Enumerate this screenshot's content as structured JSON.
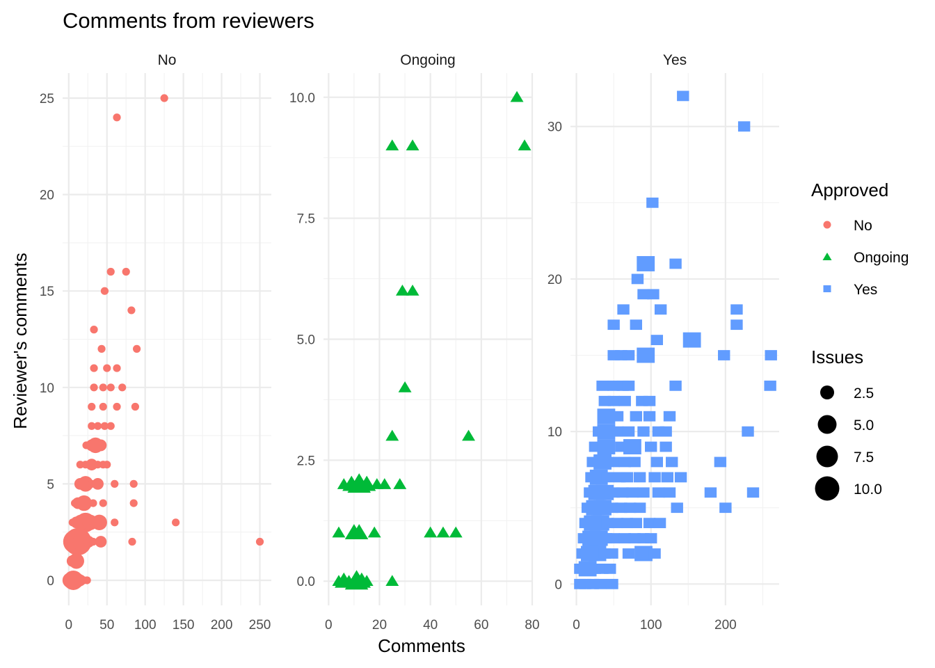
{
  "chart_data": {
    "type": "scatter",
    "title": "Comments from reviewers",
    "xlabel": "Comments",
    "ylabel": "Reviewer's comments",
    "facet_by": "Approved",
    "colors": {
      "No": "#F8766D",
      "Ongoing": "#00BA38",
      "Yes": "#619CFF"
    },
    "shapes": {
      "No": "circle",
      "Ongoing": "triangle",
      "Yes": "square"
    },
    "grid": true,
    "legend_position": "right",
    "legend": {
      "color_title": "Approved",
      "color_entries": [
        "No",
        "Ongoing",
        "Yes"
      ],
      "size_title": "Issues",
      "size_entries": [
        "2.5",
        "5.0",
        "7.5",
        "10.0"
      ],
      "size_values": [
        2.5,
        5.0,
        7.5,
        10.0
      ]
    },
    "panels": [
      {
        "label": "No",
        "xlim": [
          -8,
          265
        ],
        "ylim": [
          -1.3,
          26.3
        ],
        "xticks": [
          0,
          50,
          100,
          150,
          200,
          250
        ],
        "xtick_labels": [
          "0",
          "50",
          "100",
          "150",
          "200",
          "250"
        ],
        "yticks": [
          0,
          5,
          10,
          15,
          20,
          25
        ],
        "ytick_labels": [
          "0",
          "5",
          "10",
          "15",
          "20",
          "25"
        ],
        "points": [
          [
            125,
            25,
            1
          ],
          [
            63,
            24,
            1
          ],
          [
            55,
            16,
            1
          ],
          [
            75,
            16,
            1
          ],
          [
            47,
            15,
            1
          ],
          [
            82,
            14,
            1
          ],
          [
            33,
            13,
            1
          ],
          [
            43,
            12,
            1
          ],
          [
            89,
            12,
            1
          ],
          [
            33,
            11,
            1
          ],
          [
            50,
            11,
            1
          ],
          [
            63,
            11,
            1
          ],
          [
            33,
            10,
            1
          ],
          [
            45,
            10,
            1
          ],
          [
            55,
            10,
            1
          ],
          [
            70,
            10,
            1
          ],
          [
            30,
            9,
            1
          ],
          [
            45,
            9,
            1
          ],
          [
            63,
            9,
            1
          ],
          [
            87,
            9,
            1
          ],
          [
            30,
            8,
            1
          ],
          [
            38,
            8,
            1
          ],
          [
            47,
            8,
            1
          ],
          [
            55,
            8,
            1
          ],
          [
            23,
            7,
            1
          ],
          [
            30,
            7,
            2
          ],
          [
            35,
            7,
            3
          ],
          [
            42,
            7,
            2
          ],
          [
            15,
            6,
            1
          ],
          [
            22,
            6,
            1
          ],
          [
            30,
            6,
            2
          ],
          [
            38,
            6,
            1
          ],
          [
            45,
            6,
            1
          ],
          [
            50,
            6,
            1
          ],
          [
            15,
            5,
            2
          ],
          [
            22,
            5,
            3
          ],
          [
            30,
            5,
            1
          ],
          [
            38,
            5,
            2
          ],
          [
            60,
            5,
            1
          ],
          [
            85,
            5,
            1
          ],
          [
            8,
            4,
            1
          ],
          [
            12,
            4,
            2
          ],
          [
            20,
            4,
            3
          ],
          [
            32,
            4,
            1
          ],
          [
            45,
            4,
            1
          ],
          [
            85,
            4,
            1
          ],
          [
            5,
            3,
            1
          ],
          [
            10,
            3,
            2
          ],
          [
            16,
            3,
            3
          ],
          [
            22,
            3,
            4
          ],
          [
            28,
            3,
            3
          ],
          [
            34,
            3,
            2
          ],
          [
            40,
            3,
            3
          ],
          [
            60,
            3,
            1
          ],
          [
            140,
            3,
            1
          ],
          [
            5,
            2,
            3
          ],
          [
            8,
            2,
            5
          ],
          [
            12,
            2,
            6
          ],
          [
            18,
            2,
            4
          ],
          [
            26,
            2,
            2
          ],
          [
            32,
            2,
            1
          ],
          [
            42,
            2,
            2
          ],
          [
            83,
            2,
            1
          ],
          [
            250,
            2,
            1
          ],
          [
            5,
            1,
            2
          ],
          [
            10,
            1,
            3
          ],
          [
            2,
            0,
            3
          ],
          [
            6,
            0,
            4
          ],
          [
            10,
            0,
            3
          ],
          [
            15,
            0,
            2
          ],
          [
            20,
            0,
            1
          ],
          [
            24,
            0,
            1
          ]
        ]
      },
      {
        "label": "Ongoing",
        "xlim": [
          -2,
          80
        ],
        "ylim": [
          -0.5,
          10.5
        ],
        "xticks": [
          0,
          20,
          40,
          60,
          80
        ],
        "xtick_labels": [
          "0",
          "20",
          "40",
          "60",
          "80"
        ],
        "yticks": [
          0,
          2.5,
          5,
          7.5,
          10
        ],
        "ytick_labels": [
          "0.0",
          "2.5",
          "5.0",
          "7.5",
          "10.0"
        ],
        "points": [
          [
            74,
            10,
            1
          ],
          [
            77,
            9,
            1
          ],
          [
            25,
            9,
            1
          ],
          [
            33,
            9,
            1
          ],
          [
            29,
            6,
            1
          ],
          [
            33,
            6,
            1
          ],
          [
            30,
            4,
            1
          ],
          [
            25,
            3,
            1
          ],
          [
            55,
            3,
            1
          ],
          [
            6,
            2,
            1
          ],
          [
            9,
            2,
            2
          ],
          [
            12,
            2,
            3
          ],
          [
            15,
            2,
            2
          ],
          [
            19,
            2,
            1
          ],
          [
            22,
            2,
            1
          ],
          [
            28,
            2,
            1
          ],
          [
            4,
            1,
            1
          ],
          [
            10,
            1,
            2
          ],
          [
            12,
            1,
            2
          ],
          [
            18,
            1,
            1
          ],
          [
            40,
            1,
            1
          ],
          [
            45,
            1,
            1
          ],
          [
            50,
            1,
            1
          ],
          [
            4,
            0,
            1
          ],
          [
            6,
            0,
            2
          ],
          [
            8,
            0,
            1
          ],
          [
            11,
            0,
            3
          ],
          [
            13,
            0,
            2
          ],
          [
            15,
            0,
            1
          ],
          [
            25,
            0,
            1
          ]
        ]
      },
      {
        "label": "Yes",
        "xlim": [
          -8,
          272
        ],
        "ylim": [
          -1.4,
          33.5
        ],
        "xticks": [
          0,
          100,
          200
        ],
        "xtick_labels": [
          "0",
          "100",
          "200"
        ],
        "yticks": [
          0,
          10,
          20,
          30
        ],
        "ytick_labels": [
          "0",
          "10",
          "20",
          "30"
        ],
        "points": [
          [
            143,
            32,
            1
          ],
          [
            225,
            30,
            1
          ],
          [
            102,
            25,
            1
          ],
          [
            93,
            21,
            2
          ],
          [
            133,
            21,
            1
          ],
          [
            82,
            20,
            1
          ],
          [
            90,
            19,
            1
          ],
          [
            103,
            19,
            1
          ],
          [
            63,
            18,
            1
          ],
          [
            113,
            18,
            1
          ],
          [
            215,
            18,
            1
          ],
          [
            50,
            17,
            1
          ],
          [
            80,
            17,
            1
          ],
          [
            215,
            17,
            1
          ],
          [
            108,
            16,
            1
          ],
          [
            155,
            16,
            2
          ],
          [
            50,
            15,
            1
          ],
          [
            60,
            15,
            1
          ],
          [
            70,
            15,
            1
          ],
          [
            93,
            15,
            2
          ],
          [
            198,
            15,
            1
          ],
          [
            261,
            15,
            1
          ],
          [
            35,
            13,
            1
          ],
          [
            50,
            13,
            1
          ],
          [
            62,
            13,
            1
          ],
          [
            70,
            13,
            1
          ],
          [
            133,
            13,
            1
          ],
          [
            260,
            13,
            1
          ],
          [
            38,
            12,
            1
          ],
          [
            50,
            12,
            1
          ],
          [
            65,
            12,
            1
          ],
          [
            88,
            12,
            1
          ],
          [
            98,
            12,
            1
          ],
          [
            40,
            11,
            2
          ],
          [
            55,
            11,
            1
          ],
          [
            80,
            11,
            1
          ],
          [
            98,
            11,
            1
          ],
          [
            125,
            11,
            1
          ],
          [
            30,
            10,
            1
          ],
          [
            40,
            10,
            2
          ],
          [
            55,
            10,
            1
          ],
          [
            70,
            10,
            1
          ],
          [
            90,
            10,
            1
          ],
          [
            110,
            10,
            1
          ],
          [
            120,
            10,
            1
          ],
          [
            230,
            10,
            1
          ],
          [
            25,
            9,
            1
          ],
          [
            40,
            9,
            2
          ],
          [
            60,
            9,
            1
          ],
          [
            75,
            9,
            2
          ],
          [
            100,
            9,
            1
          ],
          [
            120,
            9,
            1
          ],
          [
            22,
            8,
            1
          ],
          [
            35,
            8,
            2
          ],
          [
            50,
            8,
            1
          ],
          [
            65,
            8,
            1
          ],
          [
            78,
            8,
            1
          ],
          [
            108,
            8,
            1
          ],
          [
            128,
            8,
            1
          ],
          [
            193,
            8,
            1
          ],
          [
            20,
            7,
            1
          ],
          [
            30,
            7,
            2
          ],
          [
            42,
            7,
            1
          ],
          [
            58,
            7,
            1
          ],
          [
            68,
            7,
            1
          ],
          [
            85,
            7,
            1
          ],
          [
            105,
            7,
            1
          ],
          [
            122,
            7,
            1
          ],
          [
            140,
            7,
            1
          ],
          [
            18,
            6,
            1
          ],
          [
            28,
            6,
            2
          ],
          [
            38,
            6,
            2
          ],
          [
            50,
            6,
            1
          ],
          [
            62,
            6,
            1
          ],
          [
            75,
            6,
            1
          ],
          [
            90,
            6,
            1
          ],
          [
            110,
            6,
            1
          ],
          [
            125,
            6,
            1
          ],
          [
            180,
            6,
            1
          ],
          [
            237,
            6,
            1
          ],
          [
            15,
            5,
            1
          ],
          [
            25,
            5,
            2
          ],
          [
            35,
            5,
            2
          ],
          [
            48,
            5,
            1
          ],
          [
            60,
            5,
            1
          ],
          [
            72,
            5,
            1
          ],
          [
            85,
            5,
            1
          ],
          [
            135,
            5,
            1
          ],
          [
            200,
            5,
            1
          ],
          [
            12,
            4,
            1
          ],
          [
            22,
            4,
            2
          ],
          [
            32,
            4,
            2
          ],
          [
            42,
            4,
            1
          ],
          [
            55,
            4,
            1
          ],
          [
            68,
            4,
            1
          ],
          [
            80,
            4,
            1
          ],
          [
            98,
            4,
            1
          ],
          [
            112,
            4,
            1
          ],
          [
            10,
            3,
            1
          ],
          [
            20,
            3,
            2
          ],
          [
            30,
            3,
            2
          ],
          [
            40,
            3,
            1
          ],
          [
            50,
            3,
            1
          ],
          [
            65,
            3,
            1
          ],
          [
            78,
            3,
            1
          ],
          [
            90,
            3,
            1
          ],
          [
            100,
            3,
            1
          ],
          [
            8,
            2,
            1
          ],
          [
            18,
            2,
            2
          ],
          [
            28,
            2,
            2
          ],
          [
            38,
            2,
            1
          ],
          [
            48,
            2,
            1
          ],
          [
            70,
            2,
            1
          ],
          [
            90,
            2,
            2
          ],
          [
            105,
            2,
            1
          ],
          [
            5,
            1,
            1
          ],
          [
            15,
            1,
            2
          ],
          [
            25,
            1,
            1
          ],
          [
            35,
            1,
            1
          ],
          [
            45,
            1,
            1
          ],
          [
            5,
            0,
            1
          ],
          [
            12,
            0,
            1
          ],
          [
            22,
            0,
            1
          ],
          [
            32,
            0,
            1
          ],
          [
            48,
            0,
            1
          ]
        ]
      }
    ]
  }
}
